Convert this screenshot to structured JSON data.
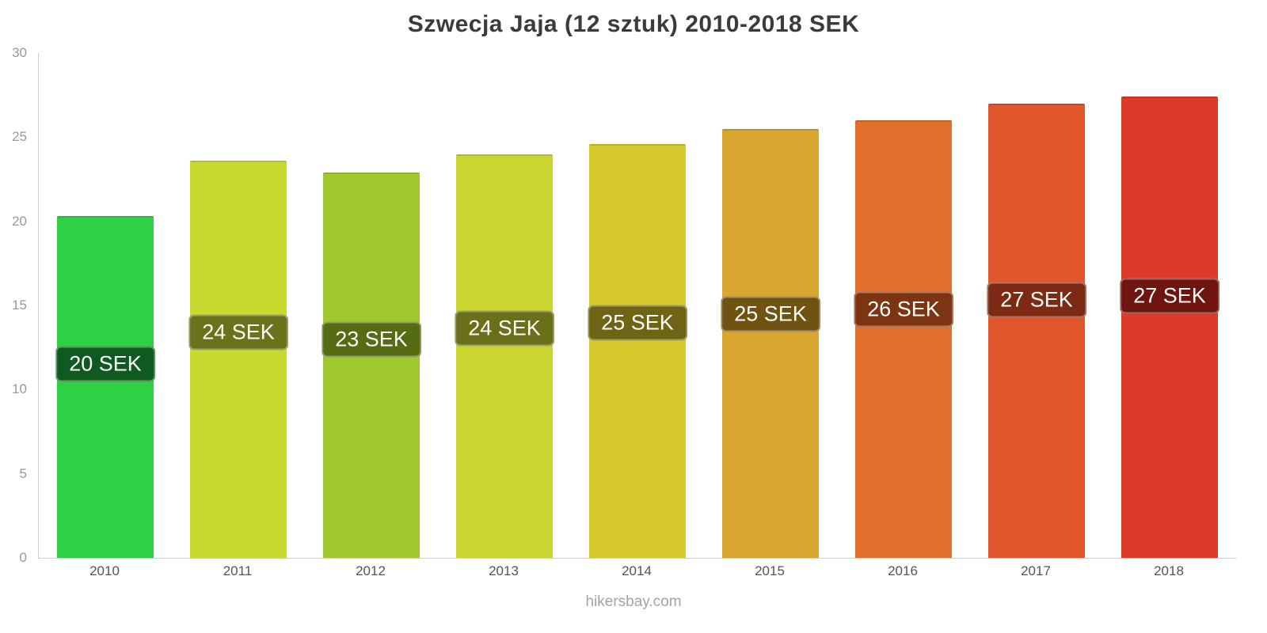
{
  "title": "Szwecja Jaja (12 sztuk) 2010-2018 SEK",
  "footer": "hikersbay.com",
  "chart_data": {
    "type": "bar",
    "title": "Szwecja Jaja (12 sztuk) 2010-2018 SEK",
    "categories": [
      "2010",
      "2011",
      "2012",
      "2013",
      "2014",
      "2015",
      "2016",
      "2017",
      "2018"
    ],
    "values": [
      20.3,
      23.6,
      22.9,
      24.0,
      24.6,
      25.5,
      26.0,
      27.0,
      27.4
    ],
    "labels": [
      "20 SEK",
      "24 SEK",
      "23 SEK",
      "24 SEK",
      "25 SEK",
      "25 SEK",
      "26 SEK",
      "27 SEK",
      "27 SEK"
    ],
    "bar_colors": [
      "#2ed143",
      "#c9da2f",
      "#a0c930",
      "#cbd530",
      "#d6ca2c",
      "#d9a62f",
      "#e0702c",
      "#e2562b",
      "#de3a2c"
    ],
    "label_bg_colors": [
      "#0e5a20",
      "#6a721b",
      "#556b14",
      "#6a701a",
      "#6e6414",
      "#705312",
      "#7c3413",
      "#7c2a14",
      "#6f1510"
    ],
    "xlabel": "",
    "ylabel": "",
    "ylim": [
      0,
      30
    ],
    "y_ticks": [
      0,
      5,
      10,
      15,
      20,
      25,
      30
    ],
    "grid": false,
    "legend_position": "none",
    "watermark": "hikersbay.com"
  }
}
